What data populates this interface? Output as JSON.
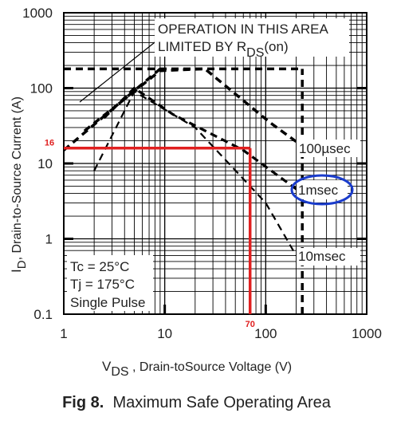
{
  "chart_data": {
    "type": "line",
    "title": "",
    "xlabel": {
      "main": "V",
      "sub": "DS",
      "rest": " , Drain-toSource Voltage (V)"
    },
    "ylabel": {
      "main": "I",
      "sub": "D",
      "rest": ",  Drain-to-Source Current (A)"
    },
    "xscale": "log",
    "yscale": "log",
    "xlim": [
      1,
      1000
    ],
    "ylim": [
      0.1,
      1000
    ],
    "x_ticks": [
      {
        "v": 1,
        "label": "1"
      },
      {
        "v": 10,
        "label": "10"
      },
      {
        "v": 100,
        "label": "100"
      },
      {
        "v": 1000,
        "label": "1000"
      }
    ],
    "y_ticks": [
      {
        "v": 1000,
        "label": "1000"
      },
      {
        "v": 100,
        "label": "100"
      },
      {
        "v": 10,
        "label": "10"
      },
      {
        "v": 1,
        "label": "1"
      },
      {
        "v": 0.1,
        "label": "0.1"
      }
    ],
    "grid": true,
    "limit_lines": [
      {
        "name": "rds_on_limit",
        "x": [
          1,
          9
        ],
        "y": [
          15,
          180
        ]
      },
      {
        "name": "current_limit",
        "x": [
          1,
          230
        ],
        "y": [
          180,
          180
        ]
      },
      {
        "name": "voltage_limit",
        "x": [
          230,
          230
        ],
        "y": [
          0.1,
          180
        ]
      }
    ],
    "series": [
      {
        "name": "100µsec",
        "x": [
          1.6,
          9,
          25,
          110,
          230
        ],
        "y": [
          27,
          170,
          180,
          35,
          17
        ]
      },
      {
        "name": "1msec",
        "x": [
          2.5,
          5,
          12,
          60,
          230
        ],
        "y": [
          40,
          100,
          45,
          15,
          4
        ]
      },
      {
        "name": "10msec",
        "x": [
          2,
          5,
          20,
          100,
          200
        ],
        "y": [
          8,
          90,
          30,
          3,
          0.6
        ]
      }
    ],
    "annotations": [
      {
        "name": "rds-note-line1",
        "text": "OPERATION IN THIS AREA"
      },
      {
        "name": "rds-note-line2-a",
        "text": "LIMITED BY R"
      },
      {
        "name": "rds-note-line2-sub",
        "text": "DS"
      },
      {
        "name": "rds-note-line2-b",
        "text": "(on)"
      },
      {
        "name": "label-100usec",
        "text": "100µsec"
      },
      {
        "name": "label-1msec",
        "text": "1msec"
      },
      {
        "name": "label-10msec",
        "text": "10msec"
      },
      {
        "name": "cond-tc",
        "text": "Tc = 25°C"
      },
      {
        "name": "cond-tj",
        "text": "Tj = 175°C"
      },
      {
        "name": "cond-pulse",
        "text": "Single Pulse"
      }
    ],
    "highlight": {
      "color": "#e02020",
      "point": {
        "x": 70,
        "y": 16
      },
      "x_label": "70",
      "y_label": "16"
    },
    "circle": {
      "color": "#1a3ccc",
      "around": "1msec"
    }
  },
  "caption": {
    "fig": "Fig 8.",
    "text": "Maximum Safe Operating Area"
  }
}
